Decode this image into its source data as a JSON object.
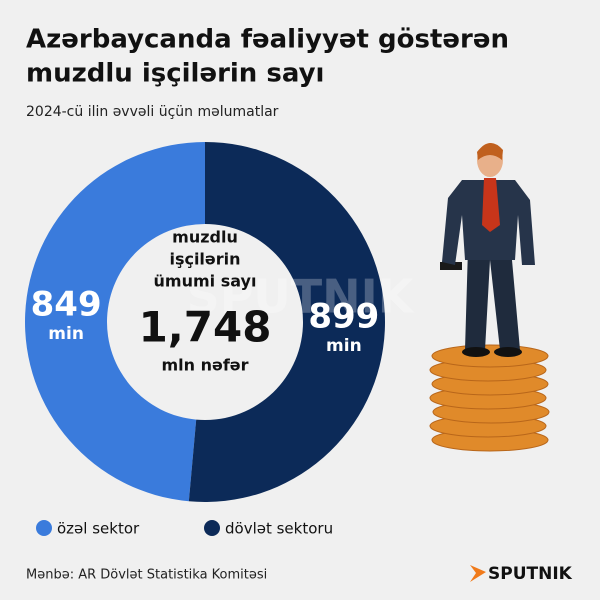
{
  "chart_data": {
    "type": "donut",
    "title": [
      "Azərbaycanda fəaliyyət göstərən",
      "muzdlu işçilərin sayı"
    ],
    "subtitle": "2024-cü ilin əvvəli üçün məlumatlar",
    "series": [
      {
        "name": "özəl sektor",
        "color": "#3a7bdc",
        "values": [
          849
        ]
      },
      {
        "name": "dövlət sektoru",
        "color": "#0c2a58",
        "values": [
          899
        ]
      }
    ],
    "value_unit": "min",
    "center_caption": [
      "muzdlu",
      "işçilərin",
      "ümumi sayı"
    ],
    "center_value": "1,748",
    "center_unit": "mln nəfər",
    "source": "Mənbə: AR Dövlət Statistika Komitəsi",
    "brand": "SPUTNIK"
  }
}
